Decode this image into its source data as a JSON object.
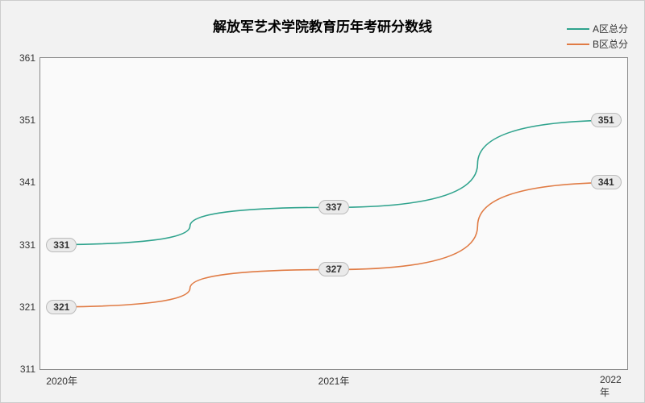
{
  "chart": {
    "type": "line",
    "title": "解放军艺术学院教育历年考研分数线",
    "title_fontsize": 17,
    "background_color": "#f2f2f2",
    "plot_background_color": "#fafafa",
    "border_color": "#888888",
    "x": {
      "categories": [
        "2020年",
        "2021年",
        "2022年"
      ],
      "positions_pct": [
        1,
        50,
        99
      ]
    },
    "y": {
      "min": 311,
      "max": 361,
      "ticks": [
        311,
        321,
        331,
        341,
        351,
        361
      ],
      "tick_fontsize": 12
    },
    "series": [
      {
        "name": "A区总分",
        "color": "#2fa38d",
        "line_width": 1.6,
        "values": [
          331,
          337,
          351
        ],
        "smooth": true
      },
      {
        "name": "B区总分",
        "color": "#e07b44",
        "line_width": 1.6,
        "values": [
          321,
          327,
          341
        ],
        "smooth": true
      }
    ],
    "data_label": {
      "background": "#eaeaea",
      "border": "#bbbbbb",
      "fontsize": 12
    },
    "legend": {
      "position": "top-right",
      "fontsize": 12
    }
  }
}
